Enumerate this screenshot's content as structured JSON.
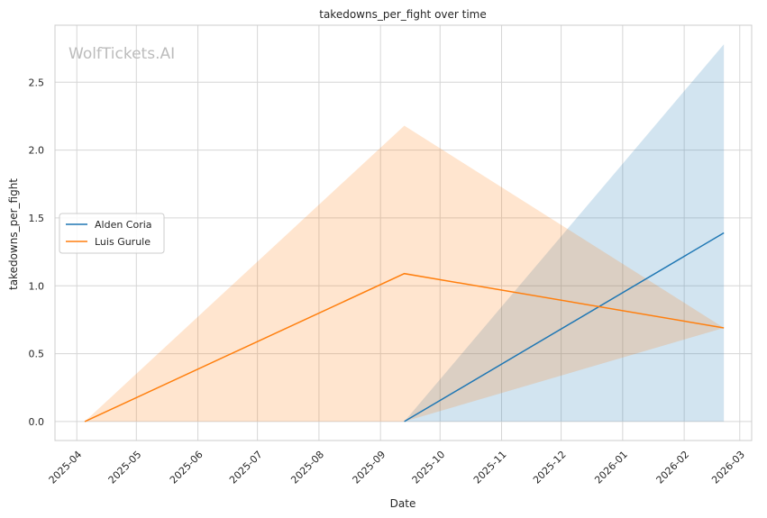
{
  "chart_data": {
    "type": "line",
    "title": "takedowns_per_fight over time",
    "xlabel": "Date",
    "ylabel": "takedowns_per_fight",
    "watermark": "WolfTickets.AI",
    "x_ticks": [
      "2025-04",
      "2025-05",
      "2025-06",
      "2025-07",
      "2025-08",
      "2025-09",
      "2025-10",
      "2025-11",
      "2025-12",
      "2026-01",
      "2026-02",
      "2026-03"
    ],
    "xlim": [
      "2025-03-21",
      "2026-03-07"
    ],
    "y_ticks": [
      "0.0",
      "0.5",
      "1.0",
      "1.5",
      "2.0",
      "2.5"
    ],
    "ylim": [
      -0.14,
      2.92
    ],
    "grid": true,
    "legend_placement": "center-left",
    "series": [
      {
        "name": "Alden Coria",
        "color": "#1f77b4",
        "x": [
          "2025-09-13",
          "2026-02-21"
        ],
        "y": [
          0.0,
          1.39
        ],
        "ci_lower": [
          0.0,
          0.0
        ],
        "ci_upper": [
          0.0,
          2.78
        ]
      },
      {
        "name": "Luis Gurule",
        "color": "#ff7f0e",
        "x": [
          "2025-04-05",
          "2025-09-13",
          "2026-02-21"
        ],
        "y": [
          0.0,
          1.09,
          0.69
        ],
        "ci_lower": [
          0.0,
          0.0,
          0.69
        ],
        "ci_upper": [
          0.0,
          2.18,
          0.69
        ]
      }
    ]
  }
}
